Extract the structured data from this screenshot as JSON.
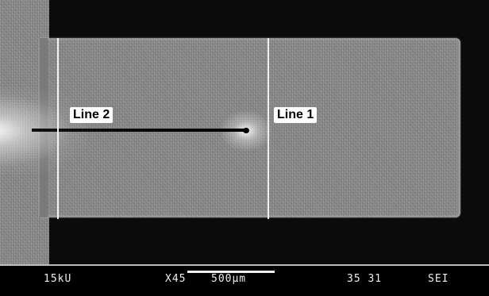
{
  "image": {
    "labels": {
      "line1": "Line 1",
      "line2": "Line 2"
    }
  },
  "info_bar": {
    "voltage": "15kU",
    "magnification": "X45",
    "scale": "500μm",
    "image_id": "35 31",
    "detector": "SEI"
  },
  "colors": {
    "background": "#0b0b0b",
    "specimen": "#8a8a8a",
    "marker_lines": "#f2f2f2",
    "label_bg": "#ffffff",
    "info_bar_bg": "#000000"
  }
}
